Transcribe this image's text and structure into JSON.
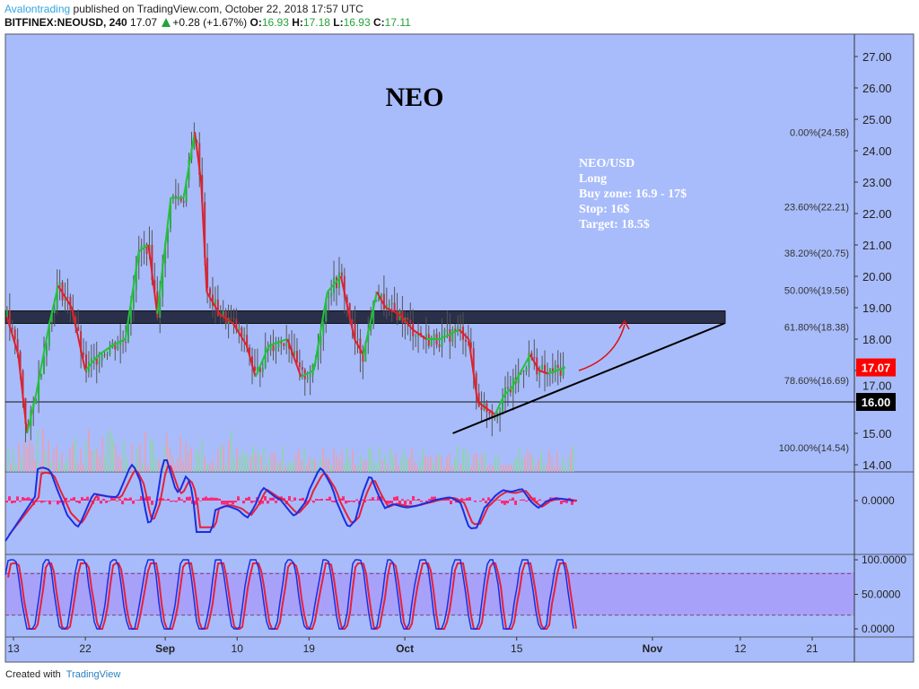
{
  "header": {
    "author": "Avalontrading",
    "published": "published on TradingView.com, October 22, 2018 17:57 UTC",
    "symbol": "BITFINEX:NEOUSD, 240",
    "last": "17.07",
    "change": "+0.28 (+1.67%)",
    "o_label": "O:",
    "o": "16.93",
    "h_label": "H:",
    "h": "17.18",
    "l_label": "L:",
    "l": "16.93",
    "c_label": "C:",
    "c": "17.11"
  },
  "footer": {
    "created": "Created with",
    "brand": "TradingView"
  },
  "colors": {
    "bg": "#a8bcfb",
    "up": "#22c33a",
    "down": "#e0202a",
    "macd": "#1a2ee0",
    "signal": "#e8203a",
    "hist": "#ff2a7a",
    "stoch_band": "#a89cf8"
  },
  "chart_data": [
    {
      "type": "line",
      "title": "NEO",
      "panel": "price",
      "ylim": [
        13.8,
        27.6
      ],
      "y_ticks": [
        "27.00",
        "26.00",
        "25.00",
        "24.00",
        "23.00",
        "22.00",
        "21.00",
        "20.00",
        "19.00",
        "18.00",
        "17.00",
        "16.00",
        "15.00",
        "14.00"
      ],
      "x_ticks": [
        "13",
        "22",
        "Sep",
        "10",
        "19",
        "Oct",
        "15",
        "Nov",
        "12",
        "21"
      ],
      "x_tick_days": [
        0,
        9,
        19,
        28,
        37,
        49,
        63,
        80,
        91,
        100
      ],
      "last_price": "17.07",
      "line_label": "16.00",
      "line_price": 16.0,
      "zone": [
        18.5,
        18.9
      ],
      "trendline": [
        [
          55,
          15.0
        ],
        [
          89,
          18.5
        ]
      ],
      "annotation": [
        "NEO/USD",
        "Long",
        "Buy zone: 16.9 - 17$",
        "Stop: 16$",
        "Target: 18.5$"
      ],
      "fib": [
        {
          "label": "0.00%(24.58)",
          "p": 24.58
        },
        {
          "label": "23.60%(22.21)",
          "p": 22.21
        },
        {
          "label": "38.20%(20.75)",
          "p": 20.75
        },
        {
          "label": "50.00%(19.56)",
          "p": 19.56
        },
        {
          "label": "61.80%(18.38)",
          "p": 18.38
        },
        {
          "label": "78.60%(16.69)",
          "p": 16.69
        },
        {
          "label": "100.00%(14.54)",
          "p": 14.54
        }
      ],
      "series": {
        "day": [
          -0.8,
          0.6,
          1.7,
          2.8,
          4.5,
          5.6,
          7.3,
          9.0,
          10.7,
          12.4,
          14.0,
          15.7,
          16.9,
          18.0,
          19.7,
          21.3,
          22.7,
          23.5,
          24.2,
          25.8,
          27.5,
          29.2,
          30.3,
          32.0,
          34.3,
          36.0,
          37.6,
          39.3,
          41.0,
          42.7,
          43.8,
          45.5,
          46.6,
          48.3,
          50.0,
          51.7,
          53.4,
          55.8,
          57.0,
          58.1,
          59.2,
          60.3,
          61.4,
          62.5,
          63.6,
          64.7,
          65.8,
          66.9,
          69.1
        ],
        "close": [
          18.7,
          17.5,
          15.0,
          16.2,
          18.5,
          19.7,
          19.0,
          17.0,
          17.5,
          17.8,
          18.0,
          20.8,
          21.0,
          18.8,
          22.5,
          22.5,
          24.6,
          23.0,
          19.5,
          18.8,
          18.5,
          17.8,
          16.8,
          17.8,
          18.0,
          16.8,
          17.0,
          19.5,
          20.0,
          18.0,
          17.5,
          19.5,
          19.0,
          18.8,
          18.3,
          18.0,
          18.0,
          18.3,
          18.0,
          16.0,
          15.8,
          15.6,
          16.2,
          16.5,
          17.0,
          17.5,
          17.0,
          16.9,
          17.1
        ]
      }
    },
    {
      "type": "line",
      "panel": "macd",
      "y_ticks": [
        "0.0000"
      ]
    },
    {
      "type": "line",
      "panel": "stochastic",
      "y_ticks": [
        "100.0000",
        "50.0000",
        "0.0000"
      ],
      "bands": [
        20,
        80
      ]
    }
  ]
}
